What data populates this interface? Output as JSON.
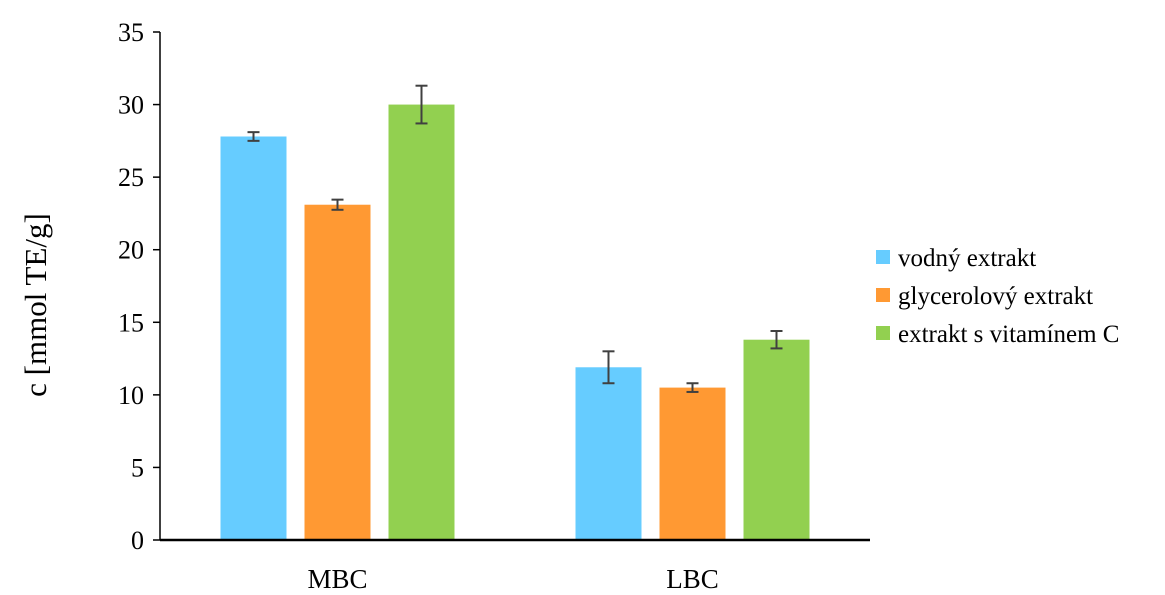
{
  "chart_data": {
    "type": "bar",
    "title": "",
    "xlabel": "",
    "ylabel": "c [mmol TE/g]",
    "ylim": [
      0,
      35
    ],
    "yticks": [
      0,
      5,
      10,
      15,
      20,
      25,
      30,
      35
    ],
    "grid": false,
    "legend_position": "right",
    "categories": [
      "MBC",
      "LBC"
    ],
    "series": [
      {
        "name": "vodný extrakt",
        "color": "#66ccff",
        "values": [
          27.8,
          11.9
        ],
        "errors": [
          0.3,
          1.1
        ]
      },
      {
        "name": "glycerolový extrakt",
        "color": "#ff9933",
        "values": [
          23.1,
          10.5
        ],
        "errors": [
          0.35,
          0.3
        ]
      },
      {
        "name": "extrakt s vitamínem C",
        "color": "#92d050",
        "values": [
          30.0,
          13.8
        ],
        "errors": [
          1.3,
          0.6
        ]
      }
    ]
  }
}
